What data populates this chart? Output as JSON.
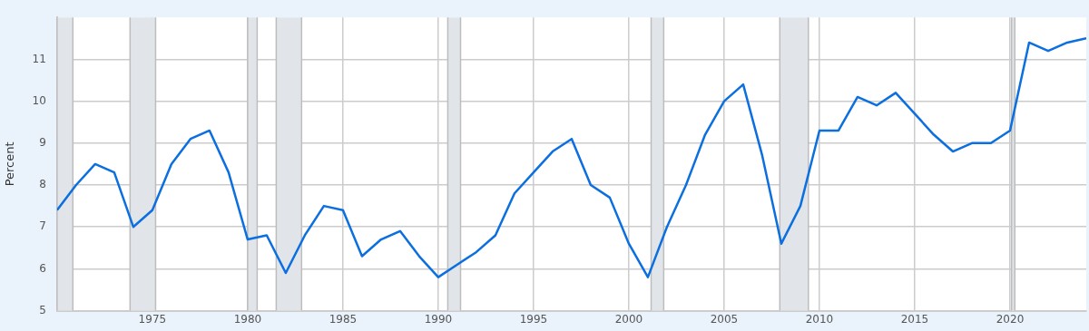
{
  "chart_data": {
    "type": "line",
    "ylabel": "Percent",
    "x": [
      1970,
      1971,
      1972,
      1973,
      1974,
      1975,
      1976,
      1977,
      1978,
      1979,
      1980,
      1981,
      1982,
      1983,
      1984,
      1985,
      1986,
      1987,
      1988,
      1989,
      1990,
      1991,
      1992,
      1993,
      1994,
      1995,
      1996,
      1997,
      1998,
      1999,
      2000,
      2001,
      2002,
      2003,
      2004,
      2005,
      2006,
      2007,
      2008,
      2009,
      2010,
      2011,
      2012,
      2013,
      2014,
      2015,
      2016,
      2017,
      2018,
      2019,
      2020,
      2021,
      2022,
      2023,
      2024
    ],
    "series": [
      {
        "color": "#0b6fe0",
        "values": [
          7.4,
          8.0,
          8.5,
          8.3,
          7.0,
          7.4,
          8.5,
          9.1,
          9.3,
          8.3,
          6.7,
          6.8,
          5.9,
          6.8,
          7.5,
          7.4,
          6.3,
          6.7,
          6.9,
          6.3,
          5.8,
          6.1,
          6.4,
          6.8,
          7.8,
          8.3,
          8.8,
          9.1,
          8.0,
          7.7,
          6.6,
          5.8,
          7.0,
          8.0,
          9.2,
          10.0,
          10.4,
          8.7,
          6.6,
          7.5,
          9.3,
          9.3,
          10.1,
          9.9,
          10.2,
          9.7,
          9.2,
          8.8,
          9.0,
          9.0,
          9.3,
          11.4,
          11.2,
          11.4,
          11.5
        ]
      }
    ],
    "xlim": [
      1970,
      2024
    ],
    "xticks": [
      1975,
      1980,
      1985,
      1990,
      1995,
      2000,
      2005,
      2010,
      2015,
      2020
    ],
    "ylim": [
      5,
      12
    ],
    "yticks": [
      5,
      6,
      7,
      8,
      9,
      10,
      11
    ],
    "bands": [
      {
        "axis": "x",
        "from": 1970,
        "to": 1970.83,
        "color": "#e1e5ea"
      },
      {
        "axis": "x",
        "from": 1973.83,
        "to": 1975.17,
        "color": "#e1e5ea"
      },
      {
        "axis": "x",
        "from": 1980,
        "to": 1980.5,
        "color": "#e1e5ea"
      },
      {
        "axis": "x",
        "from": 1981.5,
        "to": 1982.83,
        "color": "#e1e5ea"
      },
      {
        "axis": "x",
        "from": 1990.5,
        "to": 1991.17,
        "color": "#e1e5ea"
      },
      {
        "axis": "x",
        "from": 2001.17,
        "to": 2001.83,
        "color": "#e1e5ea"
      },
      {
        "axis": "x",
        "from": 2007.92,
        "to": 2009.42,
        "color": "#e1e5ea"
      },
      {
        "axis": "x",
        "from": 2020.08,
        "to": 2020.25,
        "color": "#e1e5ea"
      }
    ],
    "grid": true,
    "marker": "none",
    "line_style": "solid",
    "legend": false
  }
}
